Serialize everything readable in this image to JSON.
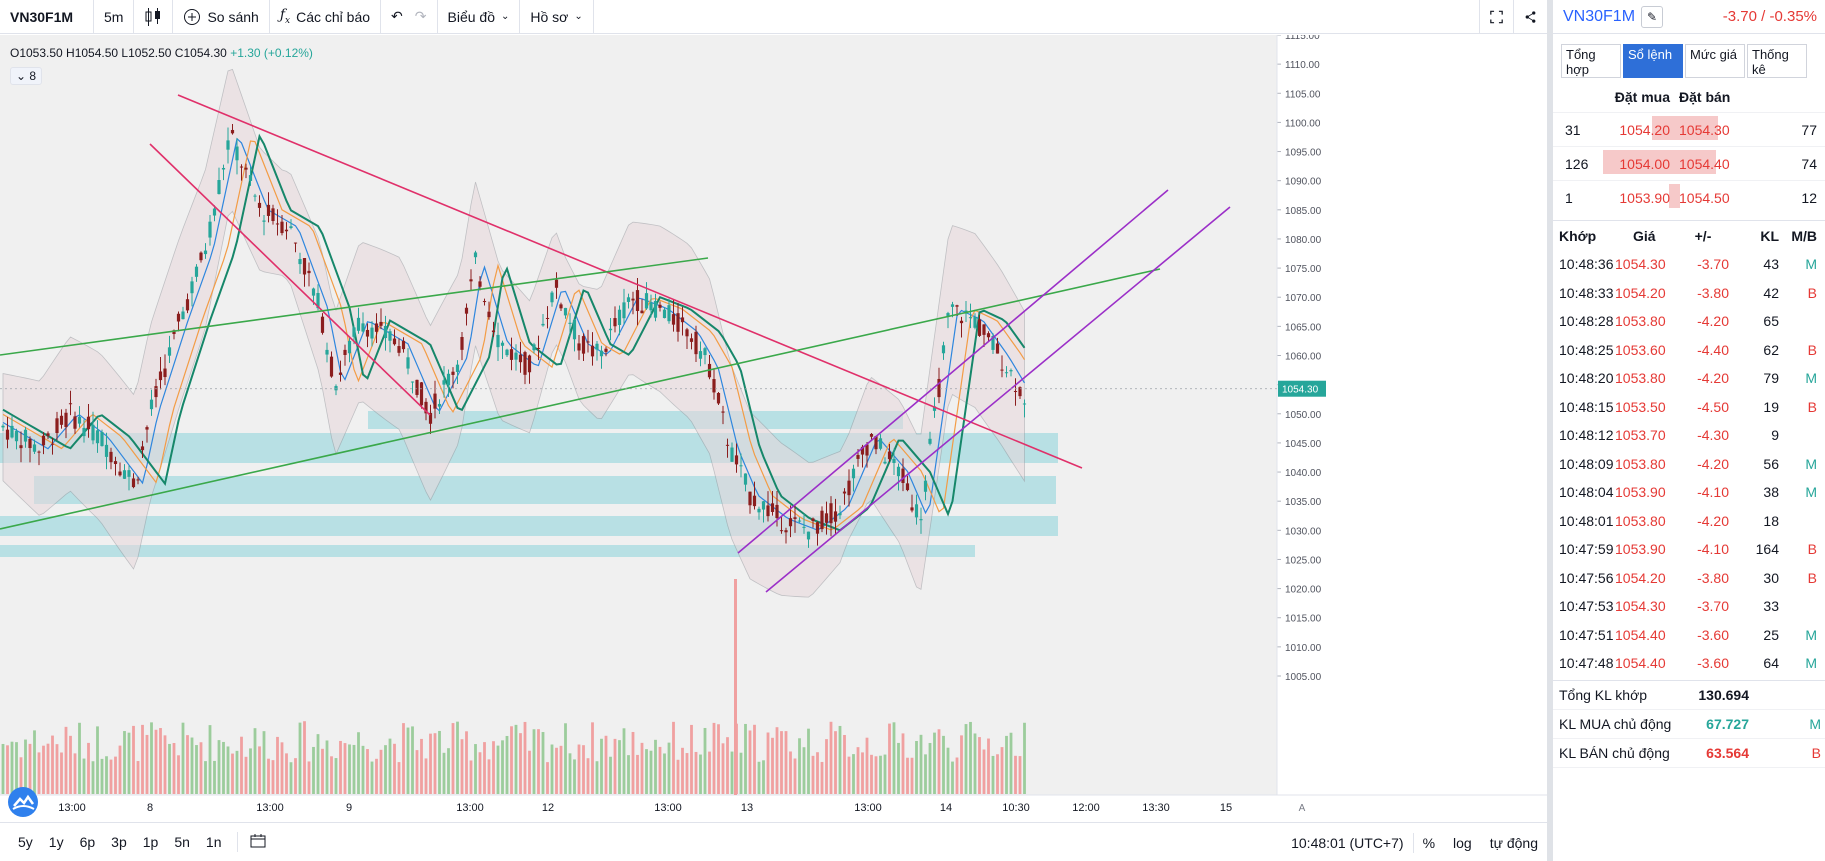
{
  "toolbar": {
    "symbol": "VN30F1M",
    "interval": "5m",
    "compare": "So sánh",
    "indicators": "Các chỉ báo",
    "chart_type": "Biểu đồ",
    "profile": "Hồ sơ"
  },
  "legend": {
    "ohlc": "O1053.50 H1054.50 L1052.50 C1054.30",
    "change": "+1.30 (+0.12%)",
    "indicator_count": "8"
  },
  "bottom": {
    "ranges": [
      "5y",
      "1y",
      "6p",
      "3p",
      "1p",
      "5n",
      "1n"
    ],
    "clock": "10:48:01 (UTC+7)",
    "percent": "%",
    "log": "log",
    "auto": "tự động"
  },
  "panel": {
    "symbol": "VN30F1M",
    "change": "-3.70 / -0.35%",
    "tabs": [
      "Tổng hợp",
      "Sổ lệnh",
      "Mức giá",
      "Thống kê"
    ],
    "active_tab": 1,
    "orderbook_headers": {
      "bid": "Đặt mua",
      "ask": "Đặt bán"
    },
    "orderbook": [
      {
        "bid_vol": "31",
        "bid": "1054.20",
        "ask": "1054.30",
        "ask_vol": "77",
        "bid_fill": 0.3,
        "ask_fill": 0.75
      },
      {
        "bid_vol": "126",
        "bid": "1054.00",
        "ask": "1054.40",
        "ask_vol": "74",
        "bid_fill": 1.0,
        "ask_fill": 0.72
      },
      {
        "bid_vol": "1",
        "bid": "1053.90",
        "ask": "1054.50",
        "ask_vol": "12",
        "bid_fill": 0.05,
        "ask_fill": 0.12
      }
    ],
    "trades_headers": {
      "time": "Khớp",
      "price": "Giá",
      "chg": "+/-",
      "kl": "KL",
      "mb": "M/B"
    },
    "trades": [
      {
        "time": "10:48:36",
        "price": "1054.30",
        "chg": "-3.70",
        "kl": "43",
        "mb": "M"
      },
      {
        "time": "10:48:33",
        "price": "1054.20",
        "chg": "-3.80",
        "kl": "42",
        "mb": "B"
      },
      {
        "time": "10:48:28",
        "price": "1053.80",
        "chg": "-4.20",
        "kl": "65",
        "mb": ""
      },
      {
        "time": "10:48:25",
        "price": "1053.60",
        "chg": "-4.40",
        "kl": "62",
        "mb": "B"
      },
      {
        "time": "10:48:20",
        "price": "1053.80",
        "chg": "-4.20",
        "kl": "79",
        "mb": "M"
      },
      {
        "time": "10:48:15",
        "price": "1053.50",
        "chg": "-4.50",
        "kl": "19",
        "mb": "B"
      },
      {
        "time": "10:48:12",
        "price": "1053.70",
        "chg": "-4.30",
        "kl": "9",
        "mb": ""
      },
      {
        "time": "10:48:09",
        "price": "1053.80",
        "chg": "-4.20",
        "kl": "56",
        "mb": "M"
      },
      {
        "time": "10:48:04",
        "price": "1053.90",
        "chg": "-4.10",
        "kl": "38",
        "mb": "M"
      },
      {
        "time": "10:48:01",
        "price": "1053.80",
        "chg": "-4.20",
        "kl": "18",
        "mb": ""
      },
      {
        "time": "10:47:59",
        "price": "1053.90",
        "chg": "-4.10",
        "kl": "164",
        "mb": "B"
      },
      {
        "time": "10:47:56",
        "price": "1054.20",
        "chg": "-3.80",
        "kl": "30",
        "mb": "B"
      },
      {
        "time": "10:47:53",
        "price": "1054.30",
        "chg": "-3.70",
        "kl": "33",
        "mb": ""
      },
      {
        "time": "10:47:51",
        "price": "1054.40",
        "chg": "-3.60",
        "kl": "25",
        "mb": "M"
      },
      {
        "time": "10:47:48",
        "price": "1054.40",
        "chg": "-3.60",
        "kl": "64",
        "mb": "M"
      }
    ],
    "totals": [
      {
        "label": "Tổng KL khớp",
        "value": "130.694",
        "flag": "",
        "color": "#131722"
      },
      {
        "label": "KL MUA chủ động",
        "value": "67.727",
        "flag": "M",
        "color": "#26a69a"
      },
      {
        "label": "KL BÁN chủ động",
        "value": "63.564",
        "flag": "B",
        "color": "#e53935"
      }
    ]
  },
  "chart": {
    "price_axis": [
      "1115.00",
      "1110.00",
      "1105.00",
      "1100.00",
      "1095.00",
      "1090.00",
      "1085.00",
      "1080.00",
      "1075.00",
      "1070.00",
      "1065.00",
      "1060.00",
      "1055.00",
      "1050.00",
      "1045.00",
      "1040.00",
      "1035.00",
      "1030.00",
      "1025.00",
      "1020.00",
      "1015.00",
      "1010.00",
      "1005.00"
    ],
    "time_axis": [
      "13:00",
      "8",
      "13:00",
      "9",
      "13:00",
      "12",
      "13:00",
      "13",
      "13:00",
      "14",
      "10:30",
      "12:00",
      "13:30",
      "15"
    ],
    "last_price": "1054.30",
    "axis_toggle": "A",
    "colors": {
      "up": "#26a69a",
      "down": "#ef5350",
      "last": "#26a69a"
    }
  }
}
